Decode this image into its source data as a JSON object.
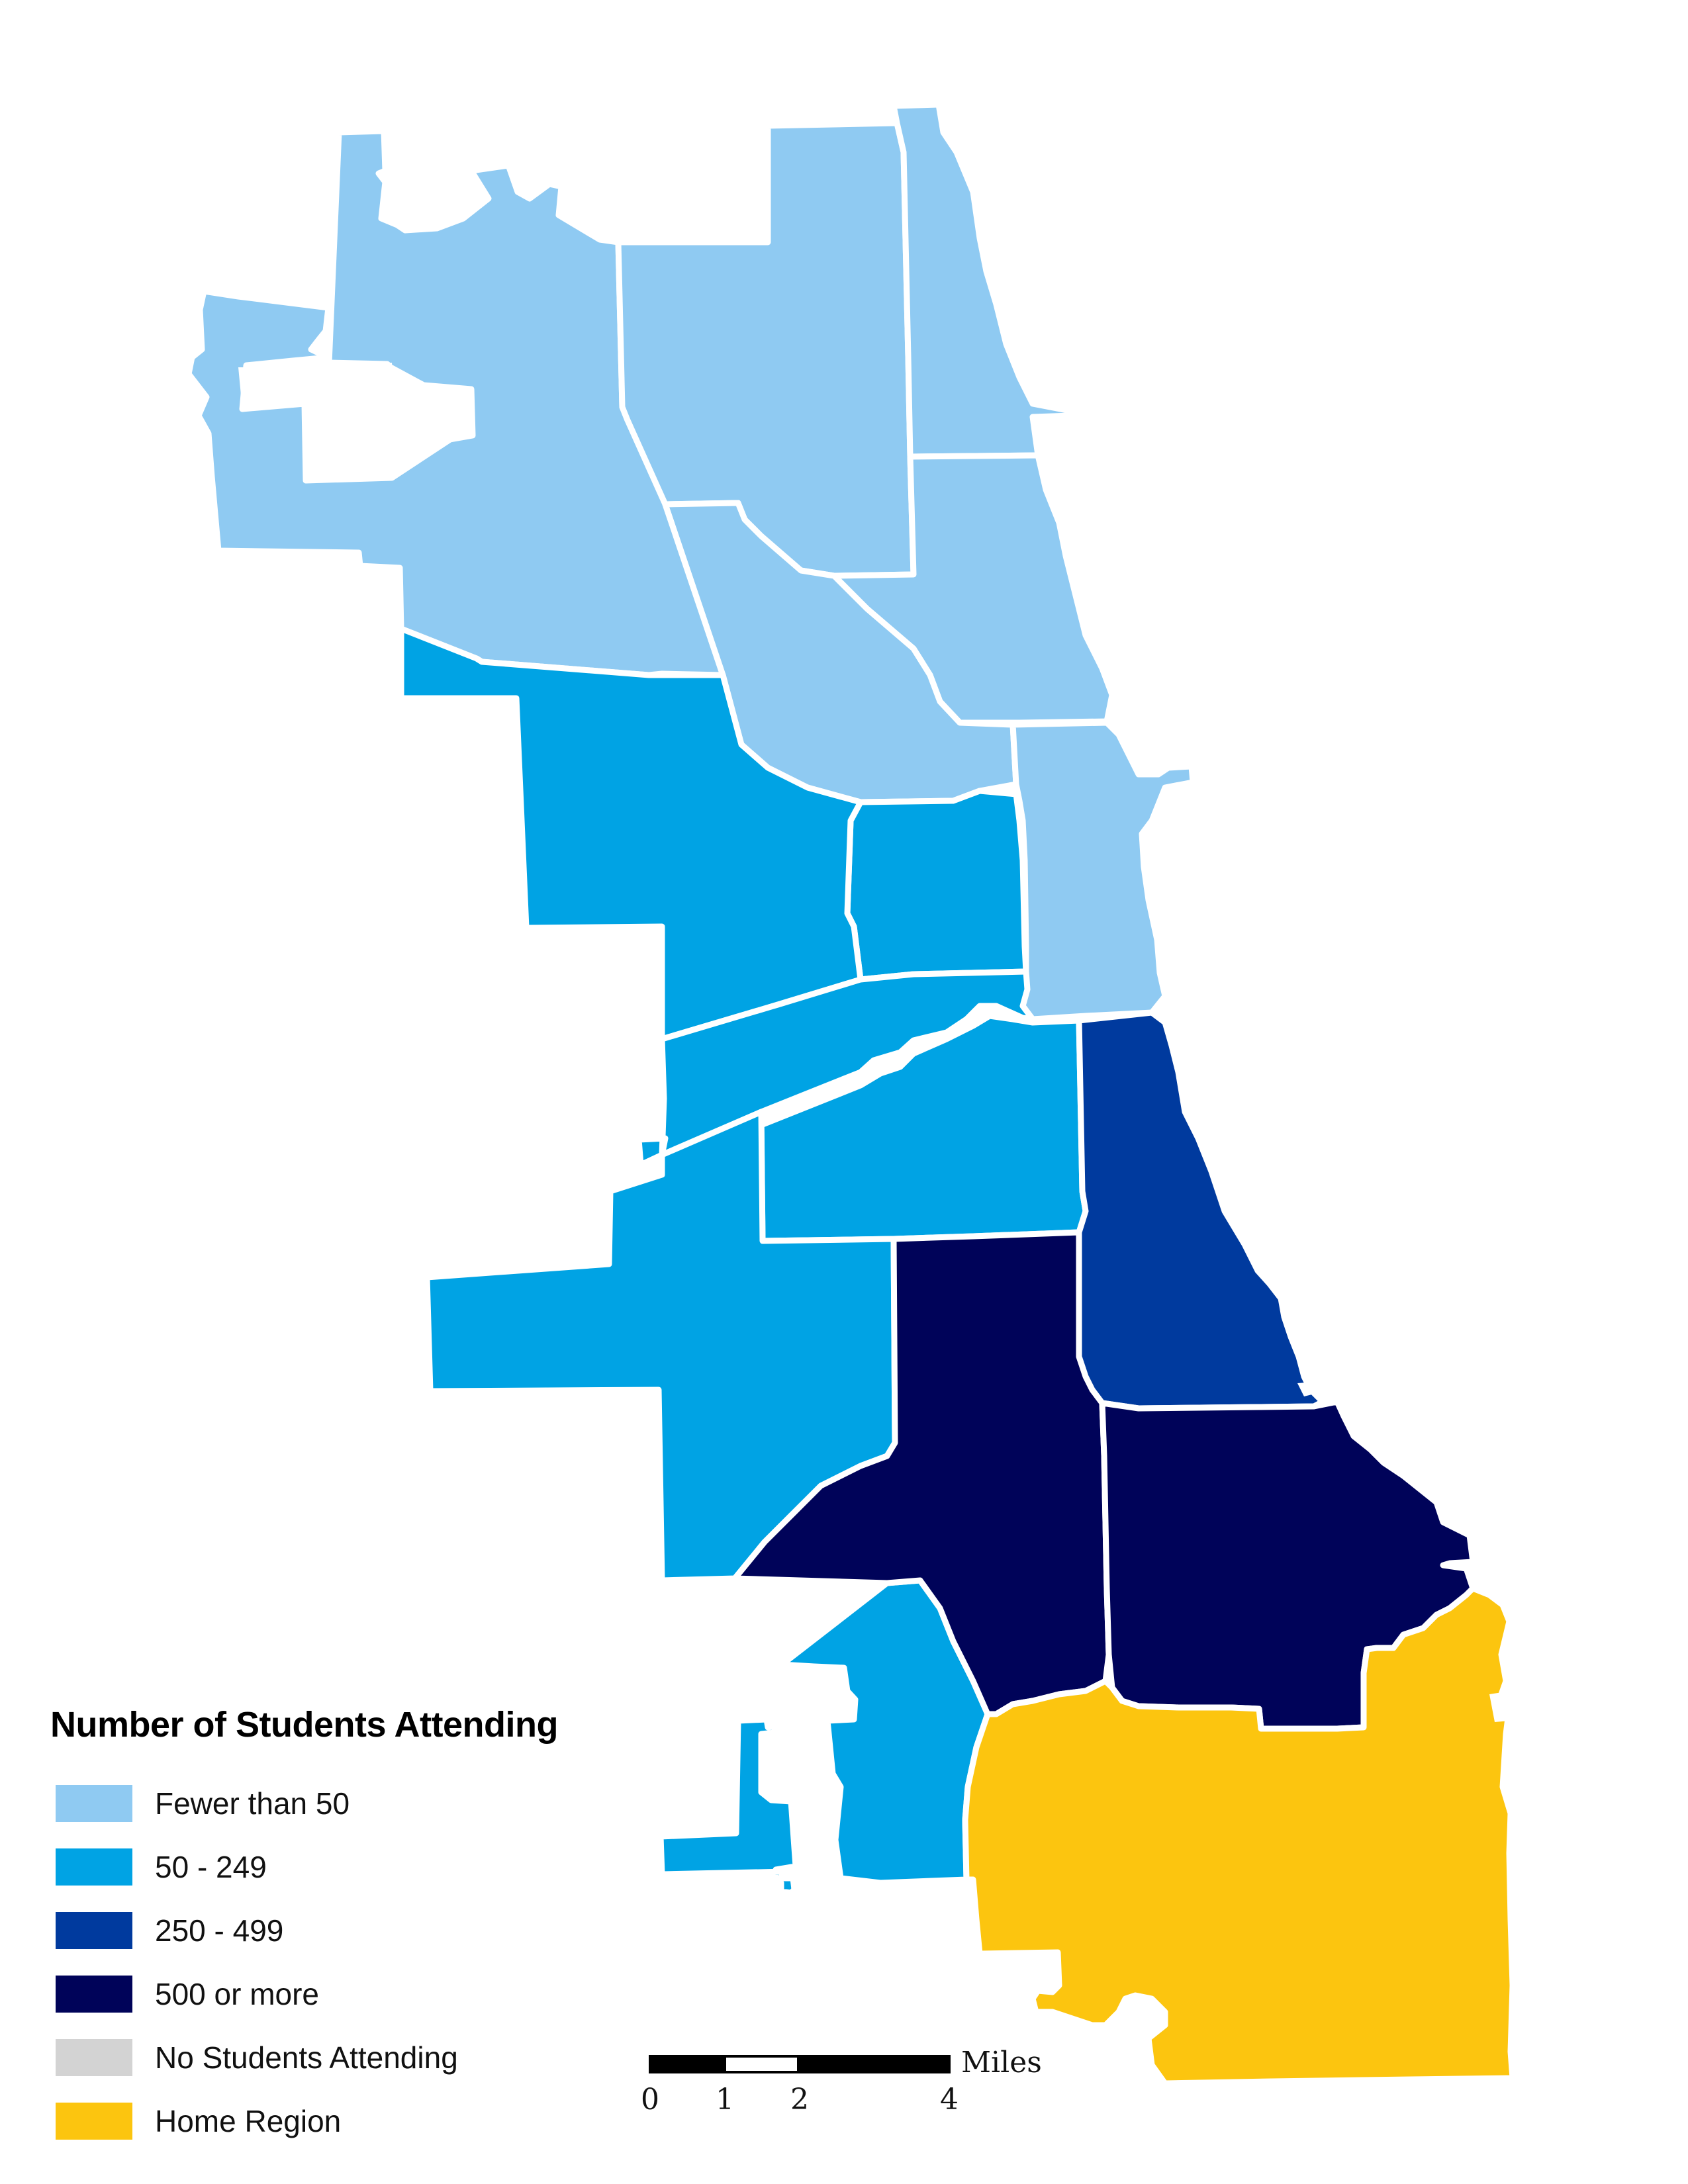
{
  "colors": {
    "fewer_than_50": "#8fcaf2",
    "range_50_249": "#00a3e4",
    "range_250_499": "#003a9e",
    "range_500_plus": "#000359",
    "no_students": "#d3d3d3",
    "home_region": "#fcc50f"
  },
  "legend": {
    "title": "Number of Students Attending",
    "items": [
      {
        "label": "Fewer than 50",
        "color": "#8fcaf2"
      },
      {
        "label": "50 - 249",
        "color": "#00a3e4"
      },
      {
        "label": "250 - 499",
        "color": "#003a9e"
      },
      {
        "label": "500 or more",
        "color": "#000359"
      },
      {
        "label": "No Students Attending",
        "color": "#d3d3d3"
      },
      {
        "label": "Home Region",
        "color": "#fcc50f"
      }
    ]
  },
  "scale": {
    "unit": "Miles",
    "ticks": [
      "0",
      "1",
      "2",
      "4"
    ]
  },
  "regions": [
    {
      "id": "far-northwest",
      "category": "fewer_than_50"
    },
    {
      "id": "north-central",
      "category": "fewer_than_50"
    },
    {
      "id": "far-north-lakefront",
      "category": "fewer_than_50"
    },
    {
      "id": "north-lakefront",
      "category": "fewer_than_50"
    },
    {
      "id": "near-north-lakefront",
      "category": "fewer_than_50"
    },
    {
      "id": "central-west-small",
      "category": "fewer_than_50"
    },
    {
      "id": "northwest-central",
      "category": "range_50_249"
    },
    {
      "id": "west-side",
      "category": "range_50_249"
    },
    {
      "id": "near-southwest-band",
      "category": "range_50_249"
    },
    {
      "id": "near-south-center",
      "category": "range_50_249"
    },
    {
      "id": "southwest",
      "category": "range_50_249"
    },
    {
      "id": "far-southwest",
      "category": "range_50_249"
    },
    {
      "id": "south-lakefront",
      "category": "range_250_499"
    },
    {
      "id": "south-central",
      "category": "range_500_plus"
    },
    {
      "id": "southeast",
      "category": "range_500_plus"
    },
    {
      "id": "far-south-home",
      "category": "home_region"
    }
  ]
}
